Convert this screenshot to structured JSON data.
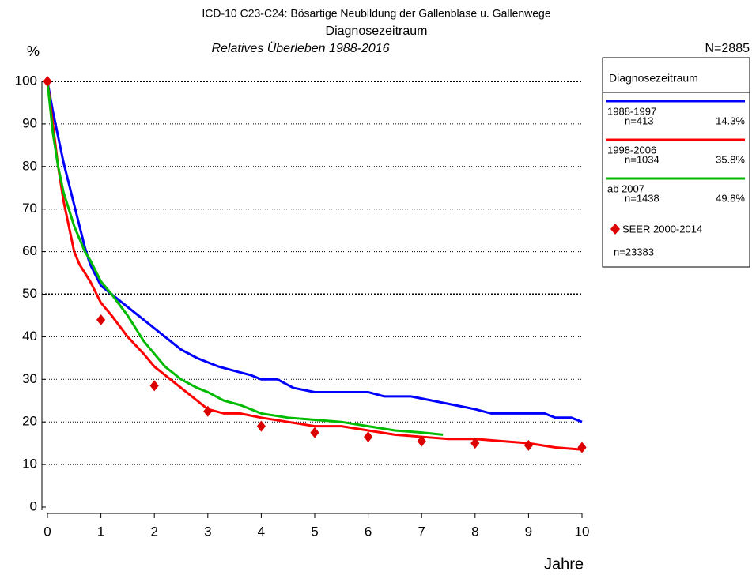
{
  "chart_data": {
    "type": "line",
    "title": "ICD-10 C23-C24: Bösartige Neubildung der Gallenblase u. Gallenwege",
    "subtitle": "Diagnosezeitraum",
    "subtitle2": "Relatives Überleben 1988-2016",
    "total": "N=2885",
    "ylabel": "%",
    "xlabel": "Jahre",
    "legend_title": "Diagnosezeitraum",
    "xlim": [
      0,
      10
    ],
    "xticks": [
      0,
      1,
      2,
      3,
      4,
      5,
      6,
      7,
      8,
      9,
      10
    ],
    "ylim": [
      0,
      100
    ],
    "yticks": [
      0,
      10,
      20,
      30,
      40,
      50,
      60,
      70,
      80,
      90,
      100
    ],
    "grid": true,
    "bold_grid": [
      50,
      100
    ],
    "series": [
      {
        "name": "1988-1997",
        "color": "#0000ff",
        "n": "n=413",
        "share": "14.3%",
        "x": [
          0,
          0.1,
          0.2,
          0.3,
          0.4,
          0.5,
          0.6,
          0.7,
          0.8,
          1.0,
          1.2,
          1.5,
          1.8,
          2.0,
          2.2,
          2.5,
          2.8,
          3.0,
          3.2,
          3.5,
          3.8,
          4.0,
          4.3,
          4.6,
          5.0,
          5.5,
          6.0,
          6.3,
          6.8,
          7.2,
          7.6,
          8.0,
          8.3,
          8.6,
          9.0,
          9.3,
          9.5,
          9.8,
          10
        ],
        "values": [
          100,
          93,
          87,
          81,
          76,
          71,
          66,
          61,
          57,
          52,
          50,
          47,
          44,
          42,
          40,
          37,
          35,
          34,
          33,
          32,
          31,
          30,
          30,
          28,
          27,
          27,
          27,
          26,
          26,
          25,
          24,
          23,
          22,
          22,
          22,
          22,
          21,
          21,
          20
        ]
      },
      {
        "name": "1998-2006",
        "color": "#ff0000",
        "n": "n=1034",
        "share": "35.8%",
        "x": [
          0,
          0.1,
          0.2,
          0.3,
          0.4,
          0.5,
          0.6,
          0.7,
          0.8,
          1.0,
          1.2,
          1.5,
          1.8,
          2.0,
          2.3,
          2.6,
          2.8,
          3.0,
          3.3,
          3.6,
          4.0,
          4.5,
          5.0,
          5.5,
          6.0,
          6.5,
          7.0,
          7.5,
          8.0,
          8.5,
          9.0,
          9.5,
          10
        ],
        "values": [
          100,
          90,
          80,
          72,
          66,
          60,
          57,
          55,
          53,
          48,
          45,
          40,
          36,
          33,
          30,
          27,
          25,
          23,
          22,
          22,
          21,
          20,
          19,
          19,
          18,
          17,
          16.5,
          16,
          16,
          15.5,
          15,
          14,
          13.5
        ]
      },
      {
        "name": "ab 2007",
        "color": "#00bb00",
        "n": "n=1438",
        "share": "49.8%",
        "x": [
          0,
          0.1,
          0.2,
          0.3,
          0.4,
          0.5,
          0.6,
          0.7,
          0.8,
          1.0,
          1.2,
          1.5,
          1.8,
          2.0,
          2.2,
          2.5,
          2.8,
          3.0,
          3.3,
          3.6,
          4.0,
          4.5,
          5.0,
          5.5,
          6.0,
          6.5,
          7.0,
          7.4
        ],
        "values": [
          100,
          88,
          80,
          74,
          70,
          66,
          63,
          60,
          58,
          53,
          50,
          45,
          39,
          36,
          33,
          30,
          28,
          27,
          25,
          24,
          22,
          21,
          20.5,
          20,
          19,
          18,
          17.5,
          17
        ]
      },
      {
        "name": "SEER 2000-2014",
        "color": "#dd0000",
        "type": "scatter",
        "n": "n=23383",
        "x": [
          0,
          1,
          2,
          3,
          4,
          5,
          6,
          7,
          8,
          9,
          10
        ],
        "values": [
          100,
          44,
          28.5,
          22.5,
          19,
          17.5,
          16.5,
          15.5,
          15,
          14.5,
          14
        ]
      }
    ]
  }
}
